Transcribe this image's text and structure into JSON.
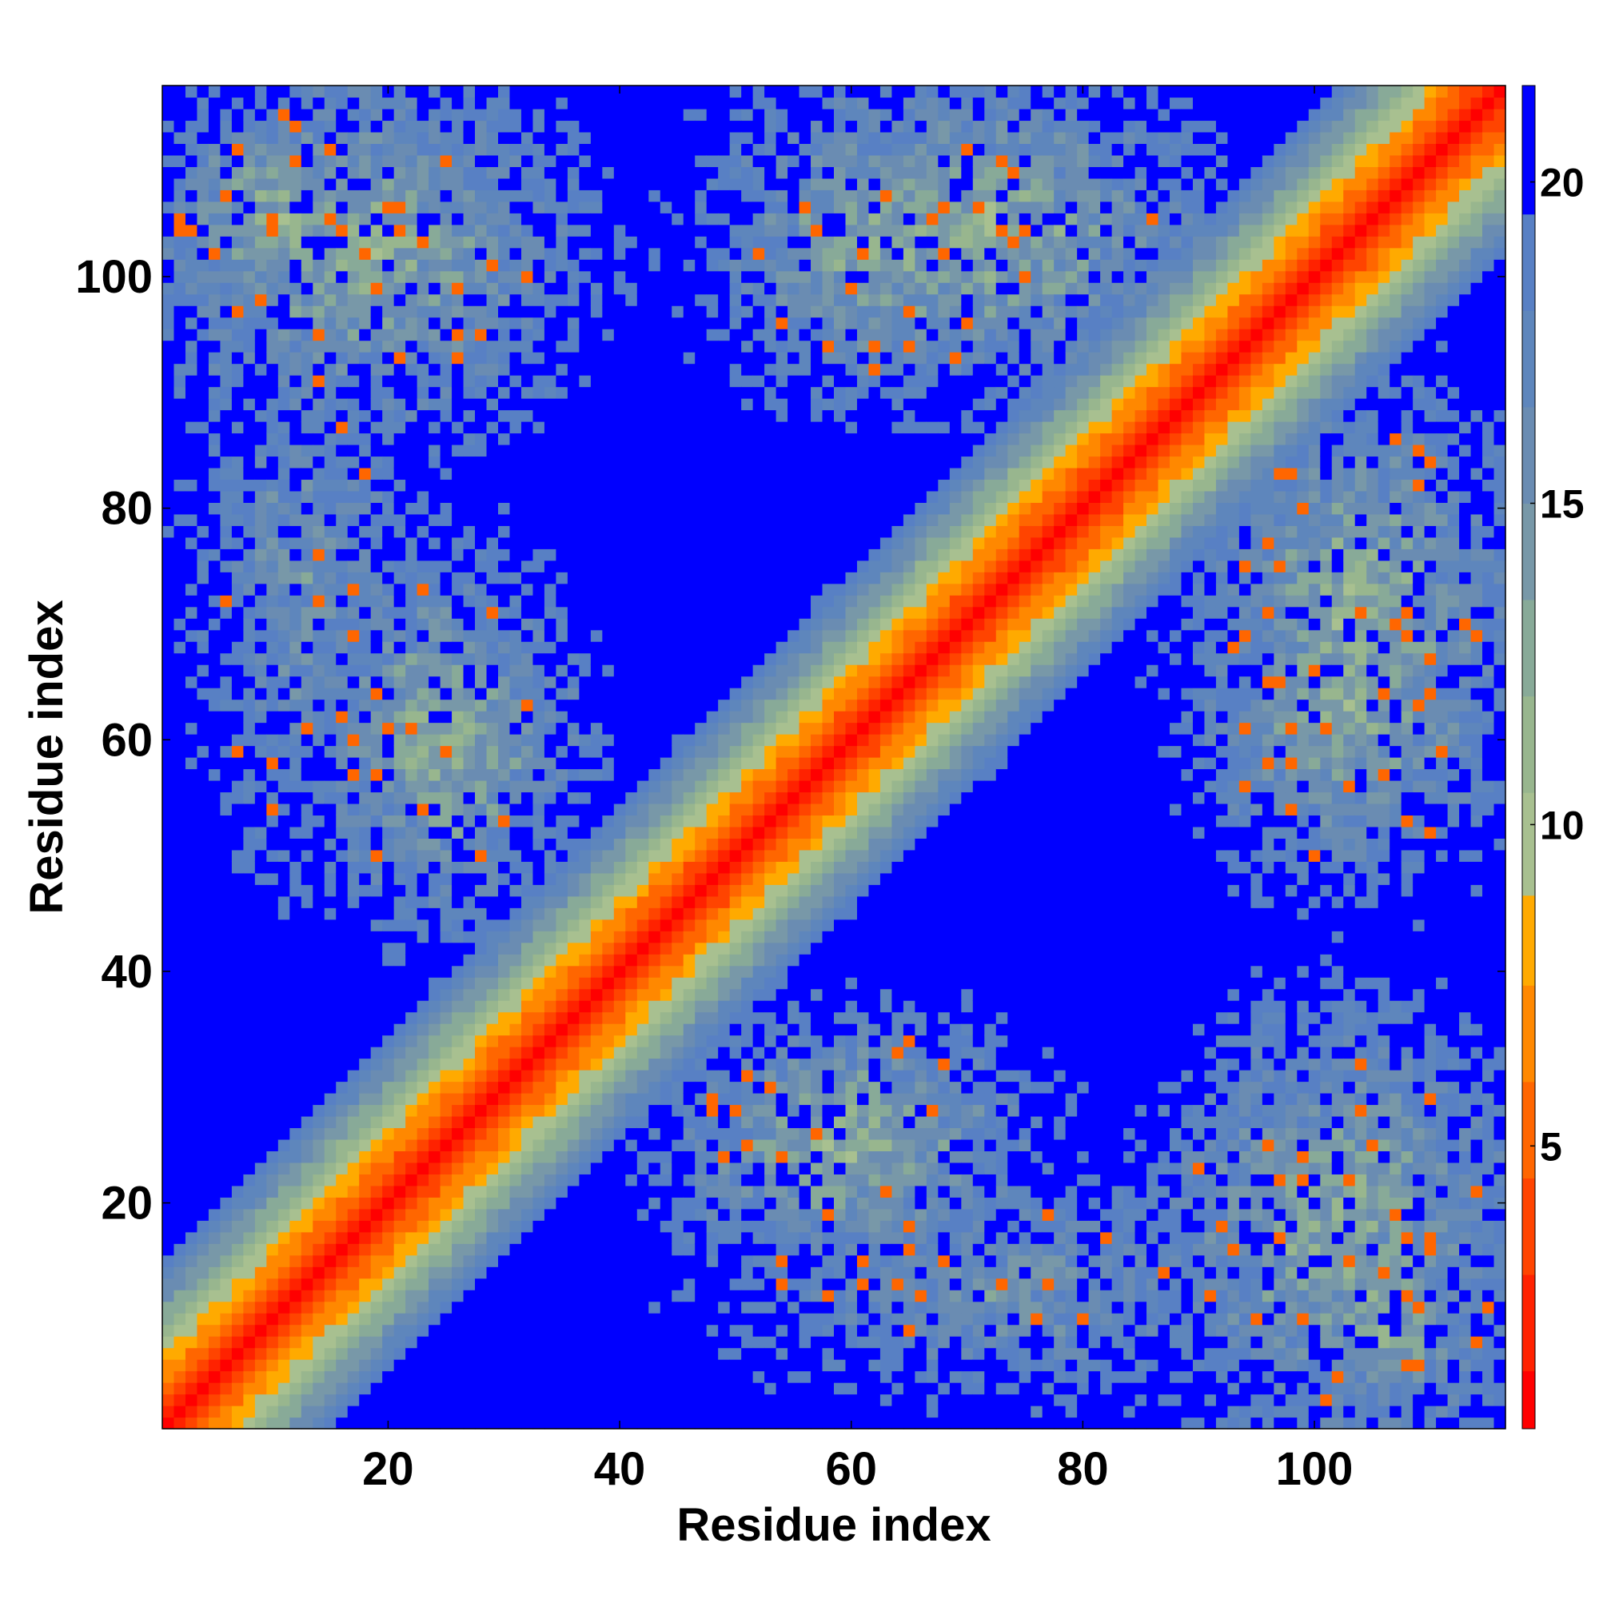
{
  "chart_data": {
    "type": "heatmap",
    "title": "",
    "xlabel": "Residue index",
    "ylabel": "Residue index",
    "n_residues": 116,
    "xlim": [
      0.5,
      116.5
    ],
    "ylim": [
      0.5,
      116.5
    ],
    "x_ticks": [
      20,
      40,
      60,
      80,
      100
    ],
    "y_ticks": [
      20,
      40,
      60,
      80,
      100
    ],
    "value_name": "distance",
    "colorbar": {
      "ticks": [
        5,
        10,
        15,
        20
      ],
      "range": [
        0.6,
        21.5
      ],
      "levels": [
        {
          "max": 1.5,
          "color": "#ff0000"
        },
        {
          "max": 3.0,
          "color": "#ff2200"
        },
        {
          "max": 4.5,
          "color": "#ff4400"
        },
        {
          "max": 6.0,
          "color": "#ff6600"
        },
        {
          "max": 7.5,
          "color": "#ff8800"
        },
        {
          "max": 8.9,
          "color": "#ffaa00"
        },
        {
          "max": 10.5,
          "color": "#a8c090"
        },
        {
          "max": 12.0,
          "color": "#98b68e"
        },
        {
          "max": 13.5,
          "color": "#88aa98"
        },
        {
          "max": 15.0,
          "color": "#7898a8"
        },
        {
          "max": 16.5,
          "color": "#6a8cb2"
        },
        {
          "max": 18.0,
          "color": "#5e86bc"
        },
        {
          "max": 19.5,
          "color": "#5880c4"
        },
        {
          "max": 21.5,
          "color": "#0000ff"
        }
      ]
    },
    "contact_domains": [
      {
        "i": [
          1,
          35
        ],
        "j": [
          1,
          35
        ],
        "scale": 13
      },
      {
        "i": [
          36,
          75
        ],
        "j": [
          36,
          75
        ],
        "scale": 12
      },
      {
        "i": [
          76,
          116
        ],
        "j": [
          76,
          116
        ],
        "scale": 13
      }
    ],
    "off_diagonal_blocks": [
      {
        "i": [
          1,
          35
        ],
        "j": [
          88,
          116
        ],
        "core": 12.5,
        "spread": 9
      },
      {
        "i": [
          15,
          35
        ],
        "j": [
          45,
          75
        ],
        "core": 12.0,
        "spread": 10
      },
      {
        "i": [
          48,
          72
        ],
        "j": [
          18,
          35
        ],
        "core": 12.5,
        "spread": 9
      },
      {
        "i": [
          52,
          90
        ],
        "j": [
          92,
          116
        ],
        "core": 12.0,
        "spread": 10
      },
      {
        "i": [
          90,
          116
        ],
        "j": [
          48,
          78
        ],
        "core": 12.5,
        "spread": 10
      },
      {
        "i": [
          95,
          116
        ],
        "j": [
          1,
          20
        ],
        "core": 12.5,
        "spread": 10
      },
      {
        "i": [
          50,
          95
        ],
        "j": [
          5,
          20
        ],
        "core": 15.5,
        "spread": 7
      },
      {
        "i": [
          5,
          20
        ],
        "j": [
          60,
          90
        ],
        "core": 15.5,
        "spread": 6
      }
    ]
  }
}
